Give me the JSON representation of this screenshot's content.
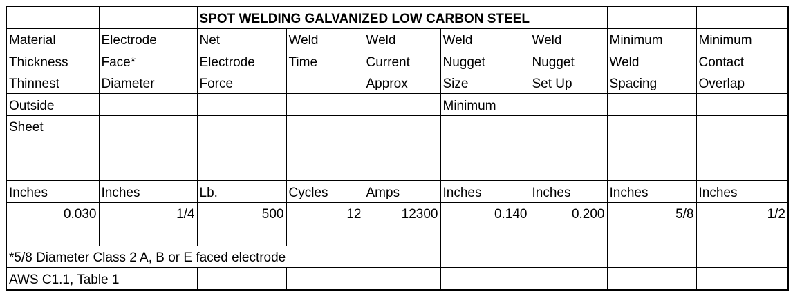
{
  "title": "SPOT WELDING GALVANIZED LOW CARBON STEEL",
  "header_rows": [
    [
      "Material",
      "Electrode",
      "Net",
      "Weld",
      "Weld",
      "Weld",
      "Weld",
      "Minimum",
      "Minimum"
    ],
    [
      "Thickness",
      "Face*",
      "Electrode",
      "Time",
      "Current",
      "Nugget",
      "Nugget",
      "Weld",
      "Contact"
    ],
    [
      "Thinnest",
      "Diameter",
      "Force",
      "",
      "Approx",
      "Size",
      "Set Up",
      "Spacing",
      "Overlap"
    ],
    [
      "Outside",
      "",
      "",
      "",
      "",
      "Minimum",
      "",
      "",
      ""
    ],
    [
      "Sheet",
      "",
      "",
      "",
      "",
      "",
      "",
      "",
      ""
    ]
  ],
  "units": [
    "Inches",
    "Inches",
    "Lb.",
    "Cycles",
    "Amps",
    "Inches",
    "Inches",
    "Inches",
    "Inches"
  ],
  "values": [
    "0.030",
    "1/4",
    "500",
    "12",
    "12300",
    "0.140",
    "0.200",
    "5/8",
    "1/2"
  ],
  "footnote": "*5/8 Diameter Class 2 A, B or E faced electrode",
  "source": "AWS C1.1, Table 1"
}
